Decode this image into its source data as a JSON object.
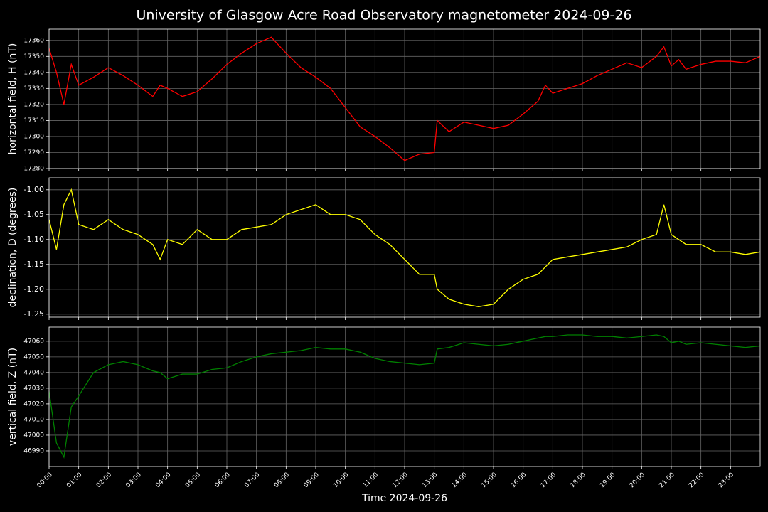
{
  "title": "University of Glasgow Acre Road Observatory magnetometer 2024-09-26",
  "chart_data": [
    {
      "type": "line",
      "ylabel": "horizontal field, H (nT)",
      "color": "#ff0000",
      "grid": true,
      "x": [
        0,
        0.25,
        0.5,
        0.75,
        1,
        1.5,
        2,
        2.5,
        3,
        3.5,
        3.75,
        4,
        4.5,
        5,
        5.5,
        6,
        6.5,
        7,
        7.5,
        8,
        8.5,
        9,
        9.5,
        10,
        10.5,
        11,
        11.5,
        12,
        12.5,
        13,
        13.1,
        13.5,
        14,
        14.5,
        15,
        15.5,
        16,
        16.5,
        16.75,
        17,
        17.5,
        18,
        18.5,
        19,
        19.5,
        20,
        20.5,
        20.75,
        21,
        21.25,
        21.5,
        22,
        22.5,
        23,
        23.5,
        24
      ],
      "values": [
        17355,
        17340,
        17320,
        17345,
        17332,
        17337,
        17343,
        17338,
        17332,
        17325,
        17332,
        17330,
        17325,
        17328,
        17336,
        17345,
        17352,
        17358,
        17362,
        17352,
        17343,
        17337,
        17330,
        17318,
        17306,
        17300,
        17293,
        17285,
        17289,
        17290,
        17310,
        17303,
        17309,
        17307,
        17305,
        17307,
        17314,
        17322,
        17332,
        17327,
        17330,
        17333,
        17338,
        17342,
        17346,
        17343,
        17350,
        17356,
        17344,
        17348,
        17342,
        17345,
        17347,
        17347,
        17346,
        17350
      ],
      "ylim": [
        17280,
        17367
      ],
      "yticks": [
        17280,
        17290,
        17300,
        17310,
        17320,
        17330,
        17340,
        17350,
        17360
      ]
    },
    {
      "type": "line",
      "ylabel": "declination, D (degrees)",
      "color": "#ffff00",
      "grid": true,
      "x": [
        0,
        0.25,
        0.5,
        0.75,
        1,
        1.5,
        2,
        2.5,
        3,
        3.5,
        3.75,
        4,
        4.5,
        5,
        5.5,
        6,
        6.5,
        7,
        7.5,
        8,
        8.5,
        9,
        9.5,
        10,
        10.5,
        11,
        11.5,
        12,
        12.5,
        13,
        13.1,
        13.5,
        14,
        14.5,
        15,
        15.5,
        16,
        16.5,
        16.75,
        17,
        17.5,
        18,
        18.5,
        19,
        19.5,
        20,
        20.5,
        20.75,
        21,
        21.25,
        21.5,
        22,
        22.5,
        23,
        23.5,
        24
      ],
      "values": [
        -1.06,
        -1.12,
        -1.03,
        -1.0,
        -1.07,
        -1.08,
        -1.06,
        -1.08,
        -1.09,
        -1.11,
        -1.14,
        -1.1,
        -1.11,
        -1.08,
        -1.1,
        -1.1,
        -1.08,
        -1.075,
        -1.07,
        -1.05,
        -1.04,
        -1.03,
        -1.05,
        -1.05,
        -1.06,
        -1.09,
        -1.11,
        -1.14,
        -1.17,
        -1.17,
        -1.2,
        -1.22,
        -1.23,
        -1.235,
        -1.23,
        -1.2,
        -1.18,
        -1.17,
        -1.155,
        -1.14,
        -1.135,
        -1.13,
        -1.125,
        -1.12,
        -1.115,
        -1.1,
        -1.09,
        -1.03,
        -1.09,
        -1.1,
        -1.11,
        -1.11,
        -1.125,
        -1.125,
        -1.13,
        -1.125
      ],
      "ylim": [
        -1.256,
        -0.976
      ],
      "yticks": [
        {
          "value": -1.0,
          "label": "-1.00"
        },
        {
          "value": -1.05,
          "label": "-1.05"
        },
        {
          "value": -1.1,
          "label": "-1.10"
        },
        {
          "value": -1.15,
          "label": "-1.15"
        },
        {
          "value": -1.2,
          "label": "-1.20"
        },
        {
          "value": -1.25,
          "label": "-1.25"
        }
      ]
    },
    {
      "type": "line",
      "ylabel": "vertical field, Z (nT)",
      "xlabel": "Time 2024-09-26",
      "color": "#008000",
      "grid": true,
      "x": [
        0,
        0.25,
        0.5,
        0.75,
        1,
        1.5,
        2,
        2.5,
        3,
        3.5,
        3.75,
        4,
        4.5,
        5,
        5.5,
        6,
        6.5,
        7,
        7.5,
        8,
        8.5,
        9,
        9.5,
        10,
        10.5,
        11,
        11.5,
        12,
        12.5,
        13,
        13.1,
        13.5,
        14,
        14.5,
        15,
        15.5,
        16,
        16.5,
        16.75,
        17,
        17.5,
        18,
        18.5,
        19,
        19.5,
        20,
        20.5,
        20.75,
        21,
        21.25,
        21.5,
        22,
        22.5,
        23,
        23.5,
        24
      ],
      "values": [
        47028,
        46995,
        46986,
        47018,
        47025,
        47040,
        47045,
        47047,
        47045,
        47041,
        47040,
        47036,
        47039,
        47039,
        47042,
        47043,
        47047,
        47050,
        47052,
        47053,
        47054,
        47056,
        47055,
        47055,
        47053,
        47049,
        47047,
        47046,
        47045,
        47046,
        47055,
        47056,
        47059,
        47058,
        47057,
        47058,
        47060,
        47062,
        47063,
        47063,
        47064,
        47064,
        47063,
        47063,
        47062,
        47063,
        47064,
        47063,
        47059,
        47060,
        47058,
        47059,
        47058,
        47057,
        47056,
        47057
      ],
      "ylim": [
        46980,
        47069
      ],
      "yticks": [
        46990,
        47000,
        47010,
        47020,
        47030,
        47040,
        47050,
        47060
      ],
      "xlim": [
        0,
        24
      ],
      "xticks": [
        {
          "value": 0,
          "label": "00:00"
        },
        {
          "value": 1,
          "label": "01:00"
        },
        {
          "value": 2,
          "label": "02:00"
        },
        {
          "value": 3,
          "label": "03:00"
        },
        {
          "value": 4,
          "label": "04:00"
        },
        {
          "value": 5,
          "label": "05:00"
        },
        {
          "value": 6,
          "label": "06:00"
        },
        {
          "value": 7,
          "label": "07:00"
        },
        {
          "value": 8,
          "label": "08:00"
        },
        {
          "value": 9,
          "label": "09:00"
        },
        {
          "value": 10,
          "label": "10:00"
        },
        {
          "value": 11,
          "label": "11:00"
        },
        {
          "value": 12,
          "label": "12:00"
        },
        {
          "value": 13,
          "label": "13:00"
        },
        {
          "value": 14,
          "label": "14:00"
        },
        {
          "value": 15,
          "label": "15:00"
        },
        {
          "value": 16,
          "label": "16:00"
        },
        {
          "value": 17,
          "label": "17:00"
        },
        {
          "value": 18,
          "label": "18:00"
        },
        {
          "value": 19,
          "label": "19:00"
        },
        {
          "value": 20,
          "label": "20:00"
        },
        {
          "value": 21,
          "label": "21:00"
        },
        {
          "value": 22,
          "label": "22:00"
        },
        {
          "value": 23,
          "label": "23:00"
        }
      ]
    }
  ]
}
